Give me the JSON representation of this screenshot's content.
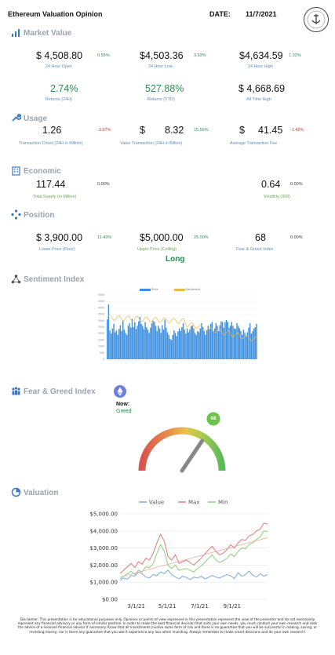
{
  "header": {
    "title": "Ethereum Valuation Opinion",
    "date_label": "DATE:",
    "date_value": "11/7/2021",
    "logo_text": "CRYPTO INSIGHTS",
    "logo_sub": "EDUCATION"
  },
  "market_value": {
    "title": "Market Value",
    "open": {
      "value": "$  4,508.80",
      "pct": "0.55%",
      "label": "24 Hour Open"
    },
    "low": {
      "value": "$4,503.36",
      "pct": "3.93%",
      "label": "24 Hour Low"
    },
    "high": {
      "value": "$4,634.59",
      "pct": "1.32%",
      "label": "24 Hour High"
    },
    "ret24": {
      "value": "2.74%",
      "label": "Returns (24H)"
    },
    "retytd": {
      "value": "527.88%",
      "label": "Returns (YTD)"
    },
    "ath": {
      "value": "$  4,668.69",
      "label": "All Time High"
    }
  },
  "usage": {
    "title": "Usage",
    "count": {
      "value": "1.26",
      "pct": "-3.97%",
      "label": "Transaction Count (24H in Million)"
    },
    "value": {
      "prefix": "$",
      "value": "8.32",
      "pct": "15.56%",
      "label": "Value Transaction (24H in Billion)"
    },
    "fee": {
      "prefix": "$",
      "value": "41.45",
      "pct": "-1.45%",
      "label": "Average Transaction Fee"
    }
  },
  "economic": {
    "title": "Economic",
    "supply": {
      "value": "117.44",
      "pct": "0.00%",
      "label": "Total Supply (in Million)"
    },
    "volatility": {
      "value": "0.64",
      "pct": "0.00%",
      "label": "Volatility (300)"
    }
  },
  "position": {
    "title": "Position",
    "lower": {
      "value": "$  3,900.00",
      "pct": "11.43%",
      "label": "Lower Price (Floor)"
    },
    "upper": {
      "value": "$5,000.00",
      "pct": "25.00%",
      "label": "Upper Price (Ceiling)"
    },
    "fg": {
      "value": "68",
      "pct": "0.00%",
      "label": "Fear & Greed Index"
    },
    "stance": "Long"
  },
  "sentiment": {
    "title": "Sentiment Index",
    "legend": [
      "Price",
      "Sentiment"
    ]
  },
  "fear_greed": {
    "title": "Fear & Greed Index",
    "now_label": "Now:",
    "now_value": "Greed",
    "gauge_value": "68"
  },
  "valuation": {
    "title": "Valuation"
  },
  "colors": {
    "value_line": "#7fa8d8",
    "max_line": "#e07a7a",
    "min_line": "#8fcf7f",
    "bar": "#3d8fe0",
    "sentiment_line": "#f0b84a",
    "trend": "#f0a0a0"
  },
  "chart_data": [
    {
      "type": "bar",
      "title": "Sentiment Index",
      "legend": [
        "Price",
        "Sentiment"
      ],
      "yticks": [
        "5000",
        "4500",
        "4000",
        "3500",
        "3000",
        "2500",
        "2000",
        "1500",
        "1000",
        "500",
        "0"
      ],
      "bars_estimated": [
        62,
        85,
        45,
        40,
        48,
        55,
        42,
        45,
        38,
        47,
        53,
        44,
        60,
        46,
        41,
        38,
        52,
        56,
        49,
        63,
        50,
        58,
        47,
        52,
        59,
        66,
        55,
        52,
        47,
        58,
        50,
        46,
        41,
        49,
        56,
        60,
        58,
        52,
        44,
        52,
        48,
        41,
        53,
        46,
        62,
        49,
        42,
        38,
        32,
        30,
        38,
        45,
        41,
        36,
        43,
        48,
        44,
        50,
        56,
        46,
        40,
        48,
        42,
        46,
        51,
        53,
        48,
        41,
        38,
        44,
        42,
        48,
        56,
        50,
        44,
        38,
        45,
        52,
        47,
        55,
        58,
        44,
        48,
        56,
        52,
        44,
        53,
        59,
        58,
        49,
        58,
        61,
        58,
        49,
        52,
        58,
        52,
        48,
        47,
        56,
        52,
        48,
        44,
        38,
        46,
        41,
        36,
        42,
        49,
        56,
        40,
        44,
        48,
        50,
        55
      ]
    },
    {
      "type": "line",
      "title": "Valuation",
      "yticks": [
        "$5,000.00",
        "$4,000.00",
        "$3,000.00",
        "$2,000.00",
        "$1,000.00",
        "$0.00"
      ],
      "xticks": [
        "3/1/21",
        "5/1/21",
        "7/1/21",
        "9/1/21"
      ],
      "ylim": [
        0,
        5000
      ],
      "series": [
        {
          "name": "Value",
          "values": [
            1100,
            1250,
            1180,
            1400,
            1350,
            1600,
            1500,
            1300,
            1250,
            1450,
            1380,
            1600,
            1500,
            1700,
            1450,
            1300,
            1200,
            1350,
            1280,
            1150,
            1300,
            1250,
            1350,
            1200,
            1280,
            1400,
            1300,
            1250,
            1350,
            1450,
            1380,
            1200,
            1550,
            1350,
            1450,
            1650,
            1400,
            1300,
            1500,
            1350,
            1450
          ]
        },
        {
          "name": "Max",
          "values": [
            1500,
            1700,
            1900,
            2100,
            1850,
            2200,
            2050,
            2400,
            2300,
            2700,
            3300,
            3800,
            3400,
            2500,
            2300,
            2600,
            2100,
            2200,
            2300,
            2150,
            2000,
            2200,
            2400,
            2650,
            2900,
            3100,
            2800,
            2600,
            2700,
            2900,
            3200,
            3000,
            3300,
            3500,
            3450,
            3700,
            3800,
            4000,
            4100,
            4450,
            4400
          ]
        },
        {
          "name": "Min",
          "values": [
            1200,
            1350,
            1500,
            1650,
            1450,
            1700,
            1600,
            1900,
            1850,
            2100,
            2700,
            3200,
            2800,
            2000,
            1800,
            2000,
            1700,
            1750,
            1800,
            1700,
            1600,
            1800,
            1950,
            2150,
            2400,
            2600,
            2300,
            2150,
            2250,
            2400,
            2650,
            2500,
            2800,
            3000,
            2950,
            3200,
            3300,
            3500,
            3650,
            4000,
            3950
          ]
        }
      ]
    }
  ]
}
